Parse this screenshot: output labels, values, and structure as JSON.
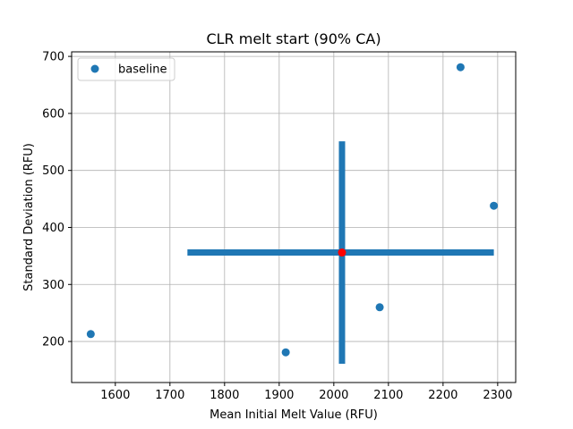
{
  "chart_data": {
    "type": "scatter",
    "title": "CLR melt start (90% CA)",
    "xlabel": "Mean Initial Melt Value (RFU)",
    "ylabel": "Standard Deviation (RFU)",
    "xlim": [
      1520,
      2333
    ],
    "ylim": [
      128,
      708
    ],
    "xticks": [
      1600,
      1700,
      1800,
      1900,
      2000,
      2100,
      2200,
      2300
    ],
    "yticks": [
      200,
      300,
      400,
      500,
      600,
      700
    ],
    "grid": true,
    "legend": {
      "position": "top-left",
      "entries": [
        "baseline"
      ]
    },
    "series": [
      {
        "name": "baseline",
        "color": "#1f77b4",
        "points": [
          {
            "x": 1555,
            "y": 213
          },
          {
            "x": 1912,
            "y": 181
          },
          {
            "x": 2084,
            "y": 260
          },
          {
            "x": 2232,
            "y": 681
          },
          {
            "x": 2293,
            "y": 438
          }
        ]
      }
    ],
    "center": {
      "x": 2015,
      "y": 356,
      "color": "#ff0000"
    },
    "crosshair": {
      "color": "#1f77b4",
      "horizontal": {
        "y": 356,
        "x_start": 1732,
        "x_end": 2293
      },
      "vertical": {
        "x": 2015,
        "y_start": 161,
        "y_end": 551
      }
    }
  }
}
